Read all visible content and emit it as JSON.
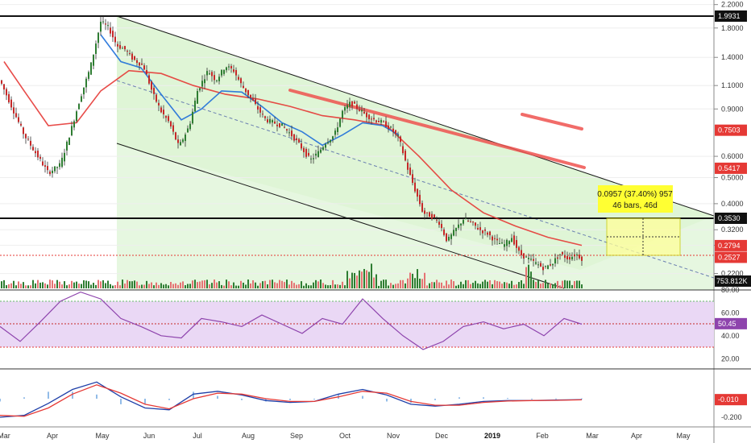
{
  "chart_data": [
    {
      "type": "candlestick",
      "scale": "log",
      "y_ticks": [
        "2.2000",
        "1.8000",
        "1.4000",
        "1.1000",
        "0.9000",
        "0.6000",
        "0.5000",
        "0.4000",
        "0.3200",
        "0.2800",
        "0.2200"
      ],
      "x_ticks": [
        "Mar",
        "Apr",
        "May",
        "Jun",
        "Jul",
        "Aug",
        "Sep",
        "Oct",
        "Nov",
        "Dec",
        "2019",
        "Feb",
        "Mar",
        "Apr",
        "May"
      ],
      "horizontal_levels": [
        1.9931,
        0.353
      ],
      "price_tags": [
        {
          "label": "1.9931",
          "color": "#111111"
        },
        {
          "label": "0.7503",
          "color": "#e53935"
        },
        {
          "label": "0.5417",
          "color": "#e53935"
        },
        {
          "label": "0.3530",
          "color": "#111111"
        },
        {
          "label": "0.2794",
          "color": "#e53935"
        },
        {
          "label": "0.2527",
          "color": "#e53935"
        }
      ],
      "volume_tag": "753.812K",
      "close_approx": 0.2527,
      "measure_box": {
        "line1": "0.0957 (37.40%) 957",
        "line2": "46 bars, 46d"
      },
      "series": [
        {
          "name": "candles",
          "x": [
            0,
            30,
            60,
            75,
            88,
            100,
            112,
            125,
            135,
            145,
            155,
            165,
            178,
            190,
            200,
            210,
            222,
            235,
            245,
            258,
            268,
            280,
            290,
            300,
            310,
            320,
            330,
            340,
            350,
            360,
            372,
            385,
            395,
            405,
            415,
            425,
            435,
            445,
            455,
            465,
            475,
            485,
            495,
            505,
            515,
            525,
            535,
            545,
            555,
            565,
            575,
            585,
            595,
            605,
            615,
            625,
            635,
            645,
            655,
            665,
            675,
            685,
            695,
            705,
            715,
            722
          ],
          "y": [
            1.15,
            0.72,
            0.52,
            0.56,
            0.75,
            1.0,
            1.28,
            1.9,
            1.8,
            1.55,
            1.5,
            1.38,
            1.3,
            1.02,
            0.88,
            0.8,
            0.65,
            0.78,
            1.05,
            1.25,
            1.15,
            1.3,
            1.25,
            1.1,
            1.0,
            0.9,
            0.82,
            0.8,
            0.78,
            0.73,
            0.66,
            0.58,
            0.62,
            0.68,
            0.72,
            0.88,
            0.95,
            0.9,
            0.85,
            0.82,
            0.8,
            0.76,
            0.7,
            0.55,
            0.45,
            0.37,
            0.36,
            0.34,
            0.29,
            0.32,
            0.35,
            0.34,
            0.32,
            0.31,
            0.29,
            0.28,
            0.3,
            0.26,
            0.25,
            0.24,
            0.23,
            0.24,
            0.26,
            0.25,
            0.26,
            0.25
          ]
        }
      ],
      "moving_averages": [
        {
          "name": "ma-red",
          "color": "#e53935",
          "x": [
            5,
            30,
            60,
            95,
            125,
            160,
            200,
            240,
            280,
            320,
            360,
            400,
            440,
            480,
            520,
            560,
            600,
            640,
            680,
            722
          ],
          "y": [
            1.35,
            1.05,
            0.78,
            0.8,
            1.05,
            1.25,
            1.22,
            1.1,
            1.02,
            0.98,
            0.92,
            0.85,
            0.82,
            0.78,
            0.6,
            0.45,
            0.37,
            0.33,
            0.3,
            0.28
          ]
        },
        {
          "name": "ma-blue",
          "color": "#1e6fd9",
          "x": [
            125,
            150,
            175,
            200,
            225,
            250,
            275,
            300,
            325,
            350,
            375,
            400,
            425,
            450,
            475,
            495
          ],
          "y": [
            1.7,
            1.35,
            1.28,
            1.02,
            0.82,
            0.9,
            1.05,
            1.04,
            0.92,
            0.8,
            0.74,
            0.66,
            0.72,
            0.8,
            0.78,
            0.72
          ]
        }
      ],
      "rsi": {
        "y_ticks": [
          "80.00",
          "60.00",
          "40.00",
          "20.00"
        ],
        "upper": 70,
        "lower": 30,
        "mid": 50,
        "value_tag": "50.45",
        "x": [
          0,
          25,
          50,
          75,
          100,
          125,
          150,
          175,
          200,
          225,
          250,
          275,
          300,
          325,
          350,
          375,
          400,
          425,
          450,
          475,
          500,
          525,
          550,
          575,
          600,
          625,
          650,
          675,
          700,
          722
        ],
        "y": [
          48,
          35,
          52,
          70,
          78,
          72,
          55,
          48,
          40,
          38,
          55,
          52,
          48,
          58,
          50,
          42,
          55,
          50,
          72,
          55,
          40,
          28,
          35,
          48,
          52,
          46,
          50,
          40,
          55,
          50
        ]
      },
      "macd": {
        "y_ticks": [
          "-0.200"
        ],
        "value_tag": "-0.010",
        "x": [
          0,
          30,
          60,
          90,
          120,
          150,
          180,
          210,
          240,
          270,
          300,
          330,
          360,
          390,
          420,
          450,
          480,
          510,
          540,
          570,
          600,
          630,
          660,
          690,
          722
        ],
        "macd": [
          -0.2,
          -0.18,
          -0.05,
          0.1,
          0.18,
          0.02,
          -0.1,
          -0.12,
          0.05,
          0.08,
          0.04,
          -0.02,
          -0.04,
          -0.03,
          0.05,
          0.1,
          0.04,
          -0.06,
          -0.08,
          -0.06,
          -0.03,
          -0.02,
          -0.02,
          -0.015,
          -0.01
        ],
        "signal": [
          -0.18,
          -0.19,
          -0.1,
          0.05,
          0.15,
          0.06,
          -0.06,
          -0.11,
          0.0,
          0.06,
          0.05,
          0.0,
          -0.03,
          -0.03,
          0.02,
          0.08,
          0.06,
          -0.03,
          -0.07,
          -0.07,
          -0.04,
          -0.025,
          -0.02,
          -0.017,
          -0.012
        ]
      }
    }
  ]
}
